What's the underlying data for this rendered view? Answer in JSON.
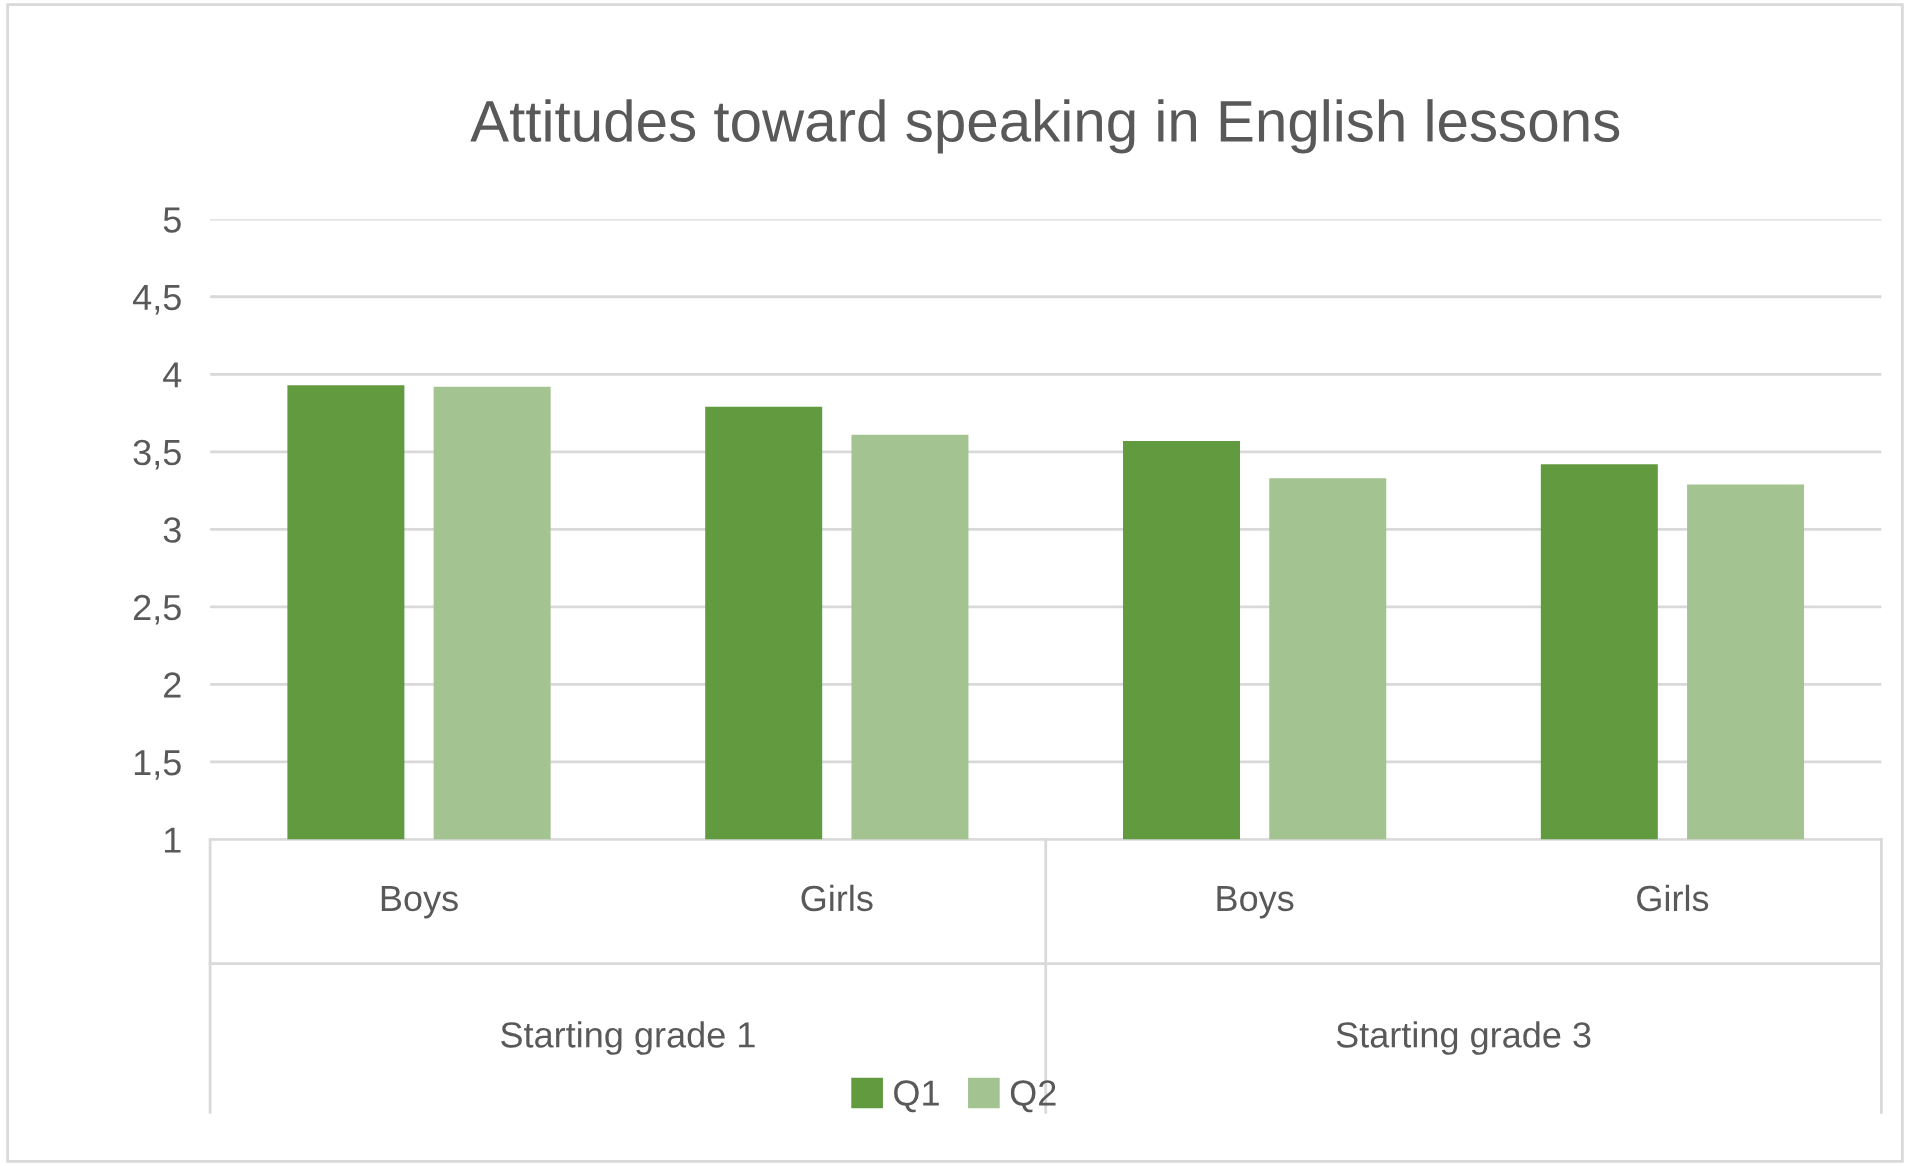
{
  "chart_data": {
    "type": "bar",
    "title": "Attitudes toward speaking in English lessons",
    "categories": [
      "Boys",
      "Girls",
      "Boys",
      "Girls"
    ],
    "series": [
      {
        "name": "Q1",
        "color": "#629a3f",
        "values": [
          3.93,
          3.79,
          3.57,
          3.42
        ]
      },
      {
        "name": "Q2",
        "color": "#a3c490",
        "values": [
          3.92,
          3.61,
          3.33,
          3.29
        ]
      }
    ],
    "annotations": [
      "Starting grade 1",
      "Starting grade 3"
    ],
    "ylim": [
      1,
      5
    ],
    "yticks": [
      1,
      {
        "value": 1.5,
        "label": "1,5"
      },
      2,
      {
        "value": 2.5,
        "label": "2,5"
      },
      3,
      {
        "value": 3.5,
        "label": "3,5"
      },
      4,
      {
        "value": 4.5,
        "label": "4,5"
      },
      5
    ],
    "grid": "y",
    "legend": "bottom"
  }
}
